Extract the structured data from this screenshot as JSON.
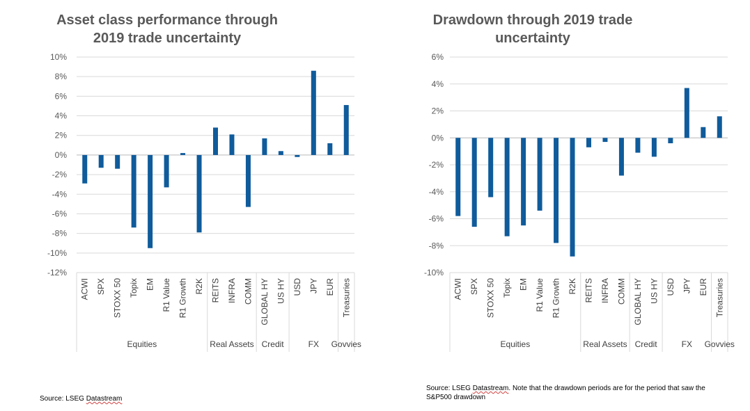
{
  "chart_data": [
    {
      "type": "bar",
      "title_line1": "Asset class performance through",
      "title_line2": "2019 trade uncertainty",
      "categories": [
        "ACWI",
        "SPX",
        "STOXX 50",
        "Topix",
        "EM",
        "R1 Value",
        "R1 Growth",
        "R2K",
        "REITS",
        "INFRA",
        "COMM",
        "GLOBAL HY",
        "US HY",
        "USD",
        "JPY",
        "EUR",
        "Treasuries"
      ],
      "values": [
        -2.9,
        -1.3,
        -1.4,
        -7.4,
        -9.5,
        -3.3,
        0.2,
        -7.9,
        2.8,
        2.1,
        -5.3,
        1.7,
        0.4,
        -0.2,
        8.6,
        1.2,
        5.1
      ],
      "groups": [
        {
          "name": "Equities",
          "count": 8
        },
        {
          "name": "Real Assets",
          "count": 3
        },
        {
          "name": "Credit",
          "count": 2
        },
        {
          "name": "FX",
          "count": 3
        },
        {
          "name": "Govvies",
          "count": 1
        }
      ],
      "yticks": [
        "10%",
        "8%",
        "6%",
        "4%",
        "2%",
        "0%",
        "-2%",
        "-4%",
        "-6%",
        "-8%",
        "-10%",
        "-12%"
      ],
      "ylim": [
        -12,
        10
      ],
      "ystep": 2,
      "grid": true,
      "color": "#0f5b9b"
    },
    {
      "type": "bar",
      "title_line1": "Drawdown through 2019 trade",
      "title_line2": "uncertainty",
      "categories": [
        "ACWI",
        "SPX",
        "STOXX 50",
        "Topix",
        "EM",
        "R1 Value",
        "R1 Growth",
        "R2K",
        "REITS",
        "INFRA",
        "COMM",
        "GLOBAL HY",
        "US HY",
        "USD",
        "JPY",
        "EUR",
        "Treasuries"
      ],
      "values": [
        -5.8,
        -6.6,
        -4.4,
        -7.3,
        -6.5,
        -5.4,
        -7.8,
        -8.8,
        -0.7,
        -0.3,
        -2.8,
        -1.1,
        -1.4,
        -0.4,
        3.7,
        0.8,
        1.6
      ],
      "groups": [
        {
          "name": "Equities",
          "count": 8
        },
        {
          "name": "Real Assets",
          "count": 3
        },
        {
          "name": "Credit",
          "count": 2
        },
        {
          "name": "FX",
          "count": 3
        },
        {
          "name": "Govvies",
          "count": 1
        }
      ],
      "yticks": [
        "6%",
        "4%",
        "2%",
        "0%",
        "-2%",
        "-4%",
        "-6%",
        "-8%",
        "-10%"
      ],
      "ylim": [
        -10,
        6
      ],
      "ystep": 2,
      "grid": true,
      "color": "#0f5b9b"
    }
  ],
  "source_left": {
    "prefix": "Source: LSEG ",
    "underlined": "Datastream",
    "suffix": ""
  },
  "source_right": {
    "prefix": "Source: LSEG ",
    "underlined": "Datastream",
    "suffix": ". Note that the drawdown periods are for the period that saw the S&P500 drawdown"
  }
}
